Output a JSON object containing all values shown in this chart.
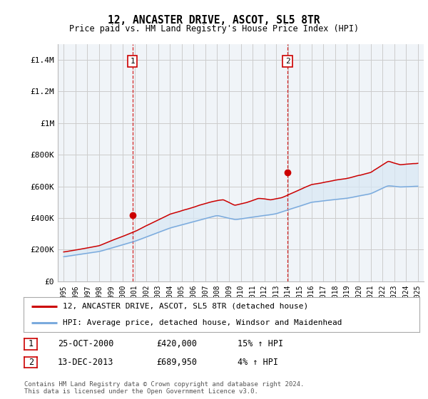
{
  "title": "12, ANCASTER DRIVE, ASCOT, SL5 8TR",
  "subtitle": "Price paid vs. HM Land Registry's House Price Index (HPI)",
  "ylabel_ticks": [
    0,
    200000,
    400000,
    600000,
    800000,
    1000000,
    1200000,
    1400000
  ],
  "ylabel_labels": [
    "£0",
    "£200K",
    "£400K",
    "£600K",
    "£800K",
    "£1M",
    "£1.2M",
    "£1.4M"
  ],
  "xlim": [
    1994.5,
    2025.5
  ],
  "ylim": [
    0,
    1500000
  ],
  "sale1_x": 2000.82,
  "sale1_y": 420000,
  "sale1_label": "1",
  "sale2_x": 2013.96,
  "sale2_y": 689950,
  "sale2_label": "2",
  "red_line_color": "#cc0000",
  "blue_line_color": "#7aaadd",
  "blue_fill_color": "#d8e8f5",
  "vline_color": "#cc0000",
  "grid_color": "#cccccc",
  "legend1_text": "12, ANCASTER DRIVE, ASCOT, SL5 8TR (detached house)",
  "legend2_text": "HPI: Average price, detached house, Windsor and Maidenhead",
  "table_row1": [
    "1",
    "25-OCT-2000",
    "£420,000",
    "15% ↑ HPI"
  ],
  "table_row2": [
    "2",
    "13-DEC-2013",
    "£689,950",
    "4% ↑ HPI"
  ],
  "footnote1": "Contains HM Land Registry data © Crown copyright and database right 2024.",
  "footnote2": "This data is licensed under the Open Government Licence v3.0.",
  "background_color": "#ffffff",
  "plot_bg_color": "#f0f4f8"
}
